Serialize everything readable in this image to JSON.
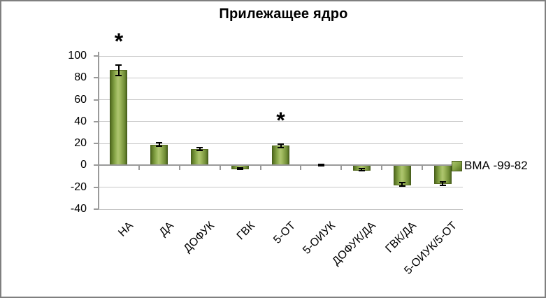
{
  "chart_data": {
    "type": "bar",
    "title": "Прилежащее ядро",
    "categories": [
      "НА",
      "ДА",
      "ДОФУК",
      "ГВК",
      "5-ОТ",
      "5-ОИУК",
      "ДОФУК/ДА",
      "ГВК/ДА",
      "5-ОИУК/5-ОТ"
    ],
    "series": [
      {
        "name": "ВМА -99-82",
        "values": [
          87,
          19,
          15,
          -3,
          18,
          0.5,
          -4,
          -17.5,
          -16.5
        ],
        "errors": [
          5,
          1.5,
          1.5,
          0.8,
          1.5,
          0.7,
          1,
          1.5,
          1.5
        ],
        "significant": [
          true,
          false,
          false,
          false,
          true,
          false,
          false,
          false,
          false
        ]
      }
    ],
    "sig_symbol": "*",
    "xlabel": "",
    "ylabel": "",
    "ylim": [
      -40,
      100
    ],
    "ytick_step": 20,
    "yticks": [
      100,
      80,
      60,
      40,
      20,
      0,
      -20,
      -40
    ],
    "grid": "horizontal",
    "legend_position": "right",
    "legend": [
      {
        "label": "ВМА -99-82",
        "color": "#9bbb59"
      }
    ]
  },
  "colors": {
    "bar_light": "#aec56f",
    "bar_dark": "#42591a",
    "gridline": "#c6c6c6",
    "axis": "#9a9a9a",
    "error_bar": "#000000",
    "frame_border": "#7f7f7f",
    "background": "#ffffff",
    "text": "#000000"
  }
}
